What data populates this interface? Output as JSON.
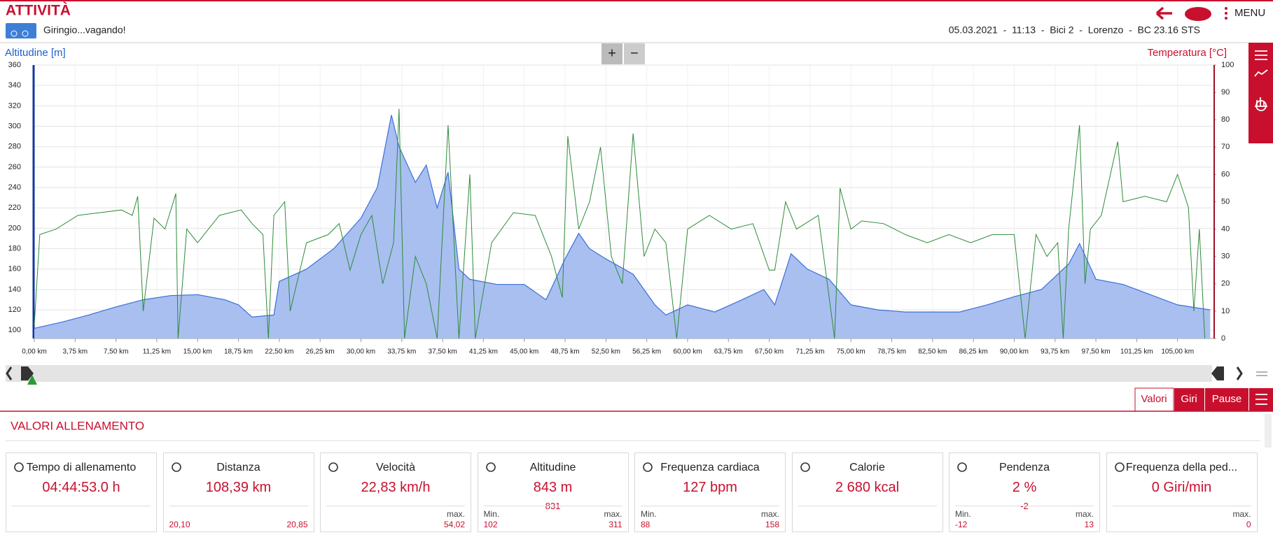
{
  "header": {
    "title": "ATTIVITÀ",
    "activity": "Giringio...vagando!",
    "info": "05.03.2021  -  11:13  -  Bici 2  -  Lorenzo  -  BC 23.16 STS",
    "menu": "MENU"
  },
  "controls": {
    "zoom_in": "+",
    "zoom_out": "−"
  },
  "chart_data": {
    "type": "line",
    "y_label": "Altitudine [m]",
    "y2_label": "Temperatura [°C]",
    "grid": true,
    "xlim": [
      0,
      108.3
    ],
    "xticks": [
      {
        "value": 0,
        "label": "0,00 km"
      },
      {
        "value": 3.75,
        "label": "3,75 km"
      },
      {
        "value": 7.5,
        "label": "7,50 km"
      },
      {
        "value": 11.25,
        "label": "11,25 km"
      },
      {
        "value": 15,
        "label": "15,00 km"
      },
      {
        "value": 18.75,
        "label": "18,75 km"
      },
      {
        "value": 22.5,
        "label": "22,50 km"
      },
      {
        "value": 26.25,
        "label": "26,25 km"
      },
      {
        "value": 30,
        "label": "30,00 km"
      },
      {
        "value": 33.75,
        "label": "33,75 km"
      },
      {
        "value": 37.5,
        "label": "37,50 km"
      },
      {
        "value": 41.25,
        "label": "41,25 km"
      },
      {
        "value": 45,
        "label": "45,00 km"
      },
      {
        "value": 48.75,
        "label": "48,75 km"
      },
      {
        "value": 52.5,
        "label": "52,50 km"
      },
      {
        "value": 56.25,
        "label": "56,25 km"
      },
      {
        "value": 60,
        "label": "60,00 km"
      },
      {
        "value": 63.75,
        "label": "63,75 km"
      },
      {
        "value": 67.5,
        "label": "67,50 km"
      },
      {
        "value": 71.25,
        "label": "71,25 km"
      },
      {
        "value": 75,
        "label": "75,00 km"
      },
      {
        "value": 78.75,
        "label": "78,75 km"
      },
      {
        "value": 82.5,
        "label": "82,50 km"
      },
      {
        "value": 86.25,
        "label": "86,25 km"
      },
      {
        "value": 90,
        "label": "90,00 km"
      },
      {
        "value": 93.75,
        "label": "93,75 km"
      },
      {
        "value": 97.5,
        "label": "97,50 km"
      },
      {
        "value": 101.25,
        "label": "101,25 km"
      },
      {
        "value": 105,
        "label": "105,00 km"
      }
    ],
    "ylim": [
      92,
      360
    ],
    "yticks": [
      100,
      120,
      140,
      160,
      180,
      200,
      220,
      240,
      260,
      280,
      300,
      320,
      340,
      360
    ],
    "y2lim": [
      0,
      100
    ],
    "y2ticks": [
      0,
      10,
      20,
      30,
      40,
      50,
      60,
      70,
      80,
      90,
      100
    ],
    "series": [
      {
        "name": "Altitudine",
        "color": "#3a6fd8",
        "area": true,
        "x": [
          0,
          2.5,
          5,
          7.5,
          10,
          12.5,
          15,
          17.5,
          18.75,
          20,
          22,
          22.5,
          25,
          27.5,
          30,
          31.5,
          32.8,
          33.5,
          35,
          36,
          37,
          38,
          39,
          40,
          42.5,
          45,
          47,
          48.75,
          50,
          51,
          52.5,
          55,
          57,
          58,
          60,
          62.5,
          65,
          67,
          68,
          69.5,
          71,
          73,
          75,
          77.5,
          80,
          82.5,
          85,
          87.5,
          90,
          92.5,
          95,
          96,
          97.5,
          100,
          102.5,
          105,
          108
        ],
        "values": [
          102,
          108,
          115,
          123,
          130,
          134,
          135,
          130,
          125,
          113,
          115,
          148,
          160,
          180,
          210,
          240,
          311,
          280,
          245,
          262,
          220,
          255,
          160,
          150,
          145,
          145,
          130,
          170,
          195,
          180,
          170,
          155,
          125,
          115,
          125,
          118,
          130,
          140,
          125,
          175,
          160,
          150,
          125,
          120,
          118,
          118,
          118,
          125,
          133,
          140,
          165,
          185,
          150,
          145,
          135,
          125,
          120
        ]
      },
      {
        "name": "Temperatura",
        "color": "#2e8b3a",
        "axis": "y2",
        "x": [
          0,
          0.5,
          2,
          4,
          6,
          8,
          9,
          9.5,
          10,
          11,
          12,
          13,
          13.2,
          14,
          15,
          17,
          19,
          20,
          21,
          21.5,
          22,
          23,
          23.5,
          25,
          27,
          28,
          29,
          30,
          31,
          32,
          33,
          33.5,
          34,
          35,
          36,
          37,
          38,
          39,
          40,
          40.5,
          42,
          44,
          46,
          47.5,
          48.5,
          49,
          50,
          51,
          52,
          53,
          54,
          55,
          56,
          57,
          58,
          59,
          60,
          62,
          64,
          66,
          67.5,
          68,
          69,
          70,
          72,
          73.5,
          74,
          75,
          76,
          78,
          80,
          82,
          84,
          86,
          88,
          90,
          91,
          92,
          93,
          94,
          94.5,
          95,
          96,
          96.5,
          97,
          98,
          99.5,
          100,
          102,
          104,
          105,
          106,
          106.5,
          107,
          107.5
        ],
        "values": [
          5,
          38,
          40,
          45,
          46,
          47,
          45,
          52,
          10,
          44,
          40,
          53,
          0,
          40,
          35,
          45,
          47,
          42,
          38,
          0,
          45,
          50,
          10,
          35,
          38,
          42,
          25,
          38,
          45,
          20,
          35,
          84,
          0,
          30,
          20,
          0,
          78,
          0,
          60,
          0,
          35,
          46,
          45,
          30,
          15,
          74,
          40,
          50,
          70,
          30,
          20,
          75,
          30,
          40,
          35,
          0,
          40,
          45,
          40,
          42,
          25,
          25,
          50,
          40,
          45,
          0,
          55,
          40,
          43,
          42,
          38,
          35,
          38,
          35,
          38,
          38,
          0,
          38,
          30,
          35,
          0,
          40,
          78,
          20,
          40,
          45,
          72,
          50,
          52,
          50,
          60,
          48,
          10,
          40,
          0
        ]
      }
    ]
  },
  "tabs": [
    "Valori",
    "Giri",
    "Pause"
  ],
  "section_title": "VALORI ALLENAMENTO",
  "cards": [
    {
      "title": "Tempo di allenamento",
      "value": "04:44:53.0 h"
    },
    {
      "title": "Distanza",
      "value": "108,39 km",
      "left": {
        "value": "20,10"
      },
      "right": {
        "value": "20,85"
      }
    },
    {
      "title": "Velocità",
      "value": "22,83 km/h",
      "right": {
        "label": "max.",
        "value": "54,02"
      }
    },
    {
      "title": "Altitudine",
      "value": "843 m",
      "sub": "831",
      "left": {
        "label": "Min.",
        "value": "102"
      },
      "right": {
        "label": "max.",
        "value": "311"
      }
    },
    {
      "title": "Frequenza cardiaca",
      "value": "127 bpm",
      "left": {
        "label": "Min.",
        "value": "88"
      },
      "right": {
        "label": "max.",
        "value": "158"
      }
    },
    {
      "title": "Calorie",
      "value": "2 680 kcal"
    },
    {
      "title": "Pendenza",
      "value": "2 %",
      "sub": "-2",
      "left": {
        "label": "Min.",
        "value": "-12"
      },
      "right": {
        "label": "max.",
        "value": "13"
      }
    },
    {
      "title": "Frequenza della ped...",
      "value": "0 Giri/min",
      "right": {
        "label": "max.",
        "value": "0"
      }
    }
  ]
}
